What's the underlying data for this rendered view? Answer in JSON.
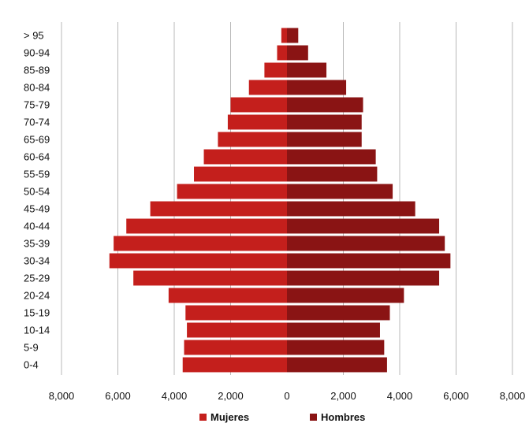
{
  "chart_data": {
    "type": "bar",
    "orientation": "horizontal",
    "layout": "population-pyramid",
    "categories": [
      "0-4",
      "5-9",
      "10-14",
      "15-19",
      "20-24",
      "25-29",
      "30-34",
      "35-39",
      "40-44",
      "45-49",
      "50-54",
      "55-59",
      "60-64",
      "65-69",
      "70-74",
      "75-79",
      "80-84",
      "85-89",
      "90-94",
      "> 95"
    ],
    "series": [
      {
        "name": "Mujeres",
        "side": "left",
        "color": "#c41f1c",
        "values": [
          3700,
          3650,
          3550,
          3600,
          4200,
          5450,
          6300,
          6150,
          5700,
          4850,
          3900,
          3300,
          2950,
          2450,
          2100,
          2000,
          1350,
          800,
          350,
          200
        ]
      },
      {
        "name": "Hombres",
        "side": "right",
        "color": "#8a1414",
        "values": [
          3550,
          3450,
          3300,
          3650,
          4150,
          5400,
          5800,
          5600,
          5400,
          4550,
          3750,
          3200,
          3150,
          2650,
          2650,
          2700,
          2100,
          1400,
          750,
          400
        ]
      }
    ],
    "xlim": [
      -8000,
      8000
    ],
    "xticks": [
      "8,000",
      "6,000",
      "4,000",
      "2,000",
      "0",
      "2,000",
      "4,000",
      "6,000",
      "8,000"
    ],
    "grid": true,
    "legend_position": "bottom",
    "title": "",
    "xlabel": "",
    "ylabel": ""
  }
}
